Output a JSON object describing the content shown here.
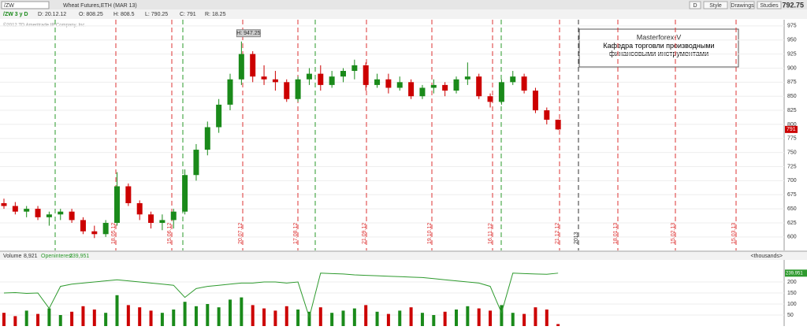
{
  "toolbar": {
    "symbol": "/ZW",
    "name": "Wheat Futures,ETH (MAR 13)",
    "last": "792.75",
    "buttons": [
      "D",
      "Style",
      "Drawings",
      "Studies"
    ]
  },
  "info": [
    "/ZW 3 y D",
    "D: 20.12.12",
    "O: 808.25",
    "H: 808.5",
    "L: 790.25",
    "C: 791",
    "R: 18.25"
  ],
  "copyright": "©2012 TD Ameritrade IP Company, Inc.",
  "annotation": {
    "title": "Masterforex-V",
    "text": "Кафедра торговли производными финансовыми инструментами"
  },
  "high_label": "H: 947.25",
  "date_lines": [
    "18.05.12",
    "15.06.12",
    "20.07.12",
    "17.08.12",
    "21.09.12",
    "19.10.12",
    "16.11.12",
    "21.12.12",
    "2013",
    "18.01.13",
    "15.02.13",
    "15.03.13"
  ],
  "chart_data": {
    "type": "candlestick",
    "up_color": "#1a8a1a",
    "down_color": "#cc0000",
    "ohlc": [
      [
        660,
        668,
        650,
        655
      ],
      [
        655,
        662,
        640,
        645
      ],
      [
        645,
        655,
        635,
        650
      ],
      [
        650,
        655,
        630,
        635
      ],
      [
        635,
        645,
        620,
        640
      ],
      [
        640,
        650,
        630,
        645
      ],
      [
        645,
        650,
        625,
        630
      ],
      [
        630,
        635,
        605,
        610
      ],
      [
        610,
        620,
        598,
        605
      ],
      [
        605,
        630,
        600,
        625
      ],
      [
        625,
        715,
        620,
        690
      ],
      [
        690,
        695,
        655,
        660
      ],
      [
        660,
        665,
        630,
        640
      ],
      [
        640,
        645,
        615,
        625
      ],
      [
        625,
        640,
        612,
        630
      ],
      [
        630,
        650,
        615,
        645
      ],
      [
        645,
        720,
        640,
        710
      ],
      [
        710,
        765,
        700,
        755
      ],
      [
        755,
        805,
        745,
        795
      ],
      [
        795,
        845,
        785,
        835
      ],
      [
        835,
        890,
        825,
        880
      ],
      [
        880,
        947.25,
        870,
        925
      ],
      [
        925,
        930,
        875,
        885
      ],
      [
        885,
        905,
        870,
        880
      ],
      [
        880,
        895,
        860,
        875
      ],
      [
        875,
        880,
        840,
        845
      ],
      [
        845,
        885,
        840,
        880
      ],
      [
        880,
        900,
        870,
        890
      ],
      [
        890,
        905,
        860,
        870
      ],
      [
        870,
        895,
        865,
        885
      ],
      [
        885,
        900,
        875,
        895
      ],
      [
        895,
        915,
        880,
        905
      ],
      [
        905,
        910,
        860,
        870
      ],
      [
        870,
        890,
        865,
        880
      ],
      [
        880,
        890,
        855,
        865
      ],
      [
        865,
        885,
        860,
        875
      ],
      [
        875,
        880,
        845,
        850
      ],
      [
        850,
        870,
        845,
        865
      ],
      [
        865,
        880,
        855,
        870
      ],
      [
        870,
        875,
        850,
        860
      ],
      [
        860,
        885,
        855,
        880
      ],
      [
        880,
        910,
        870,
        885
      ],
      [
        885,
        890,
        845,
        850
      ],
      [
        850,
        855,
        830,
        840
      ],
      [
        840,
        880,
        835,
        875
      ],
      [
        875,
        895,
        870,
        885
      ],
      [
        885,
        890,
        855,
        860
      ],
      [
        860,
        865,
        820,
        825
      ],
      [
        825,
        830,
        800,
        808.25
      ],
      [
        808.25,
        808.5,
        790.25,
        791
      ]
    ],
    "ylim": [
      576,
      986
    ],
    "yticks": [
      600,
      625,
      650,
      675,
      700,
      725,
      750,
      775,
      800,
      825,
      850,
      875,
      900,
      925,
      950,
      975
    ],
    "price_tag": "791",
    "volume_panel": {
      "title": "Volume",
      "volume_label": "8,921",
      "oi_title": "Openinterest",
      "oi_label": "239,951",
      "units": "<thousands>",
      "oi_color": "#2e9a2e",
      "volume": [
        60,
        45,
        70,
        55,
        80,
        50,
        65,
        90,
        75,
        60,
        140,
        95,
        85,
        70,
        60,
        75,
        110,
        90,
        100,
        85,
        120,
        130,
        95,
        80,
        70,
        90,
        75,
        65,
        85,
        60,
        70,
        80,
        95,
        65,
        55,
        70,
        85,
        60,
        50,
        65,
        75,
        90,
        80,
        70,
        95,
        60,
        55,
        85,
        75,
        9
      ],
      "openinterest": [
        150,
        152,
        148,
        150,
        80,
        180,
        190,
        195,
        200,
        205,
        210,
        205,
        200,
        195,
        190,
        185,
        130,
        170,
        180,
        185,
        190,
        195,
        195,
        200,
        200,
        195,
        200,
        40,
        240,
        238,
        236,
        232,
        230,
        228,
        226,
        224,
        222,
        220,
        215,
        210,
        205,
        200,
        195,
        180,
        60,
        240,
        238,
        236,
        235,
        239.951
      ],
      "ylim": [
        0,
        300
      ],
      "yticks": [
        50,
        100,
        150,
        200
      ]
    }
  }
}
